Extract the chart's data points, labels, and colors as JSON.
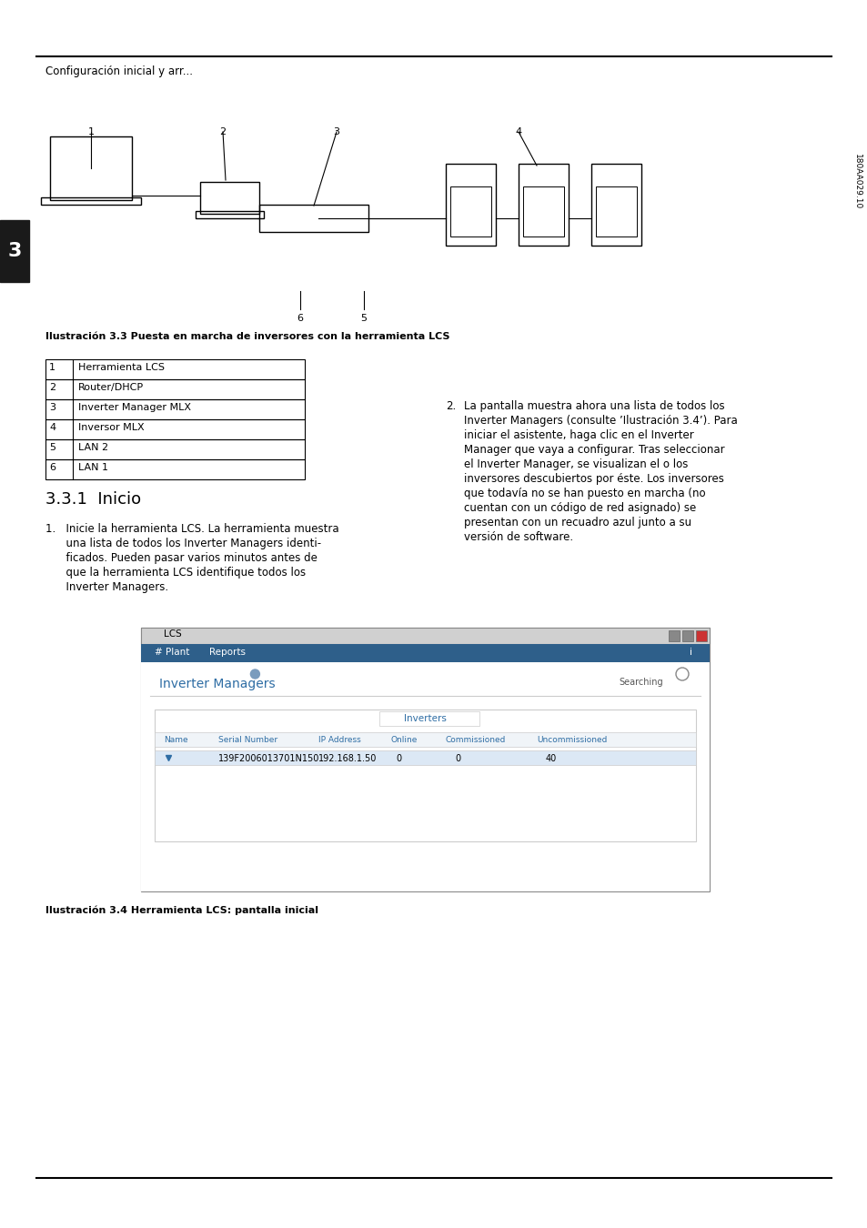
{
  "page_bg": "#ffffff",
  "header_line_color": "#000000",
  "header_text": "Configuración inicial y arr...",
  "header_fontsize": 8.5,
  "chapter_number": "3",
  "chapter_bg": "#1a1a1a",
  "fig_caption": "Ilustración 3.3 Puesta en marcha de inversores con la herramienta LCS",
  "fig_caption_fontsize": 8,
  "table_rows": [
    [
      "1",
      "Herramienta LCS"
    ],
    [
      "2",
      "Router/DHCP"
    ],
    [
      "3",
      "Inverter Manager MLX"
    ],
    [
      "4",
      "Inversor MLX"
    ],
    [
      "5",
      "LAN 2"
    ],
    [
      "6",
      "LAN 1"
    ]
  ],
  "section_title": "3.3.1  Inicio",
  "section_title_fontsize": 13,
  "para1_text": "1. Inicie la herramienta LCS. La herramienta muestra\n    una lista de todos los Inverter Managers identi-\n    ficados. Pueden pasar varios minutos antes de\n    que la herramienta LCS identifique todos los\n    Inverter Managers.",
  "para2_number": "2.",
  "para2_text": "La pantalla muestra ahora una lista de todos los\nInverter Managers (consulte ’Ilustración 3.4’). Para\niniciar el asistente, haga clic en el Inverter\nManager que vaya a configurar. Tras seleccionar\nel Inverter Manager, se visualizan el o los\ninversores descubiertos por éste. Los inversores\nque todavía no se han puesto en marcha (no\ncuentan con un código de red asignado) se\npresentan con un recuadro azul junto a su\nversión de software.",
  "body_fontsize": 8.5,
  "screenshot_caption": "Ilustración 3.4 Herramienta LCS: pantalla inicial",
  "screenshot_caption_fontsize": 8,
  "footer_line_color": "#000000",
  "sidebar_text": "180AA029.10",
  "lcs_title": "LCS",
  "lcs_menu1": "# Plant",
  "lcs_menu2": "Reports",
  "lcs_heading": "Inverter Managers",
  "lcs_searching": "Searching",
  "lcs_col_inverters": "Inverters",
  "lcs_col_name": "Name",
  "lcs_col_serial": "Serial Number",
  "lcs_col_ip": "IP Address",
  "lcs_col_online": "Online",
  "lcs_col_commissioned": "Commissioned",
  "lcs_col_uncommissioned": "Uncommissioned",
  "lcs_row_serial": "139F2006013701N150",
  "lcs_row_ip": "192.168.1.50",
  "lcs_row_online": "0",
  "lcs_row_commissioned": "0",
  "lcs_row_uncommissioned": "40"
}
